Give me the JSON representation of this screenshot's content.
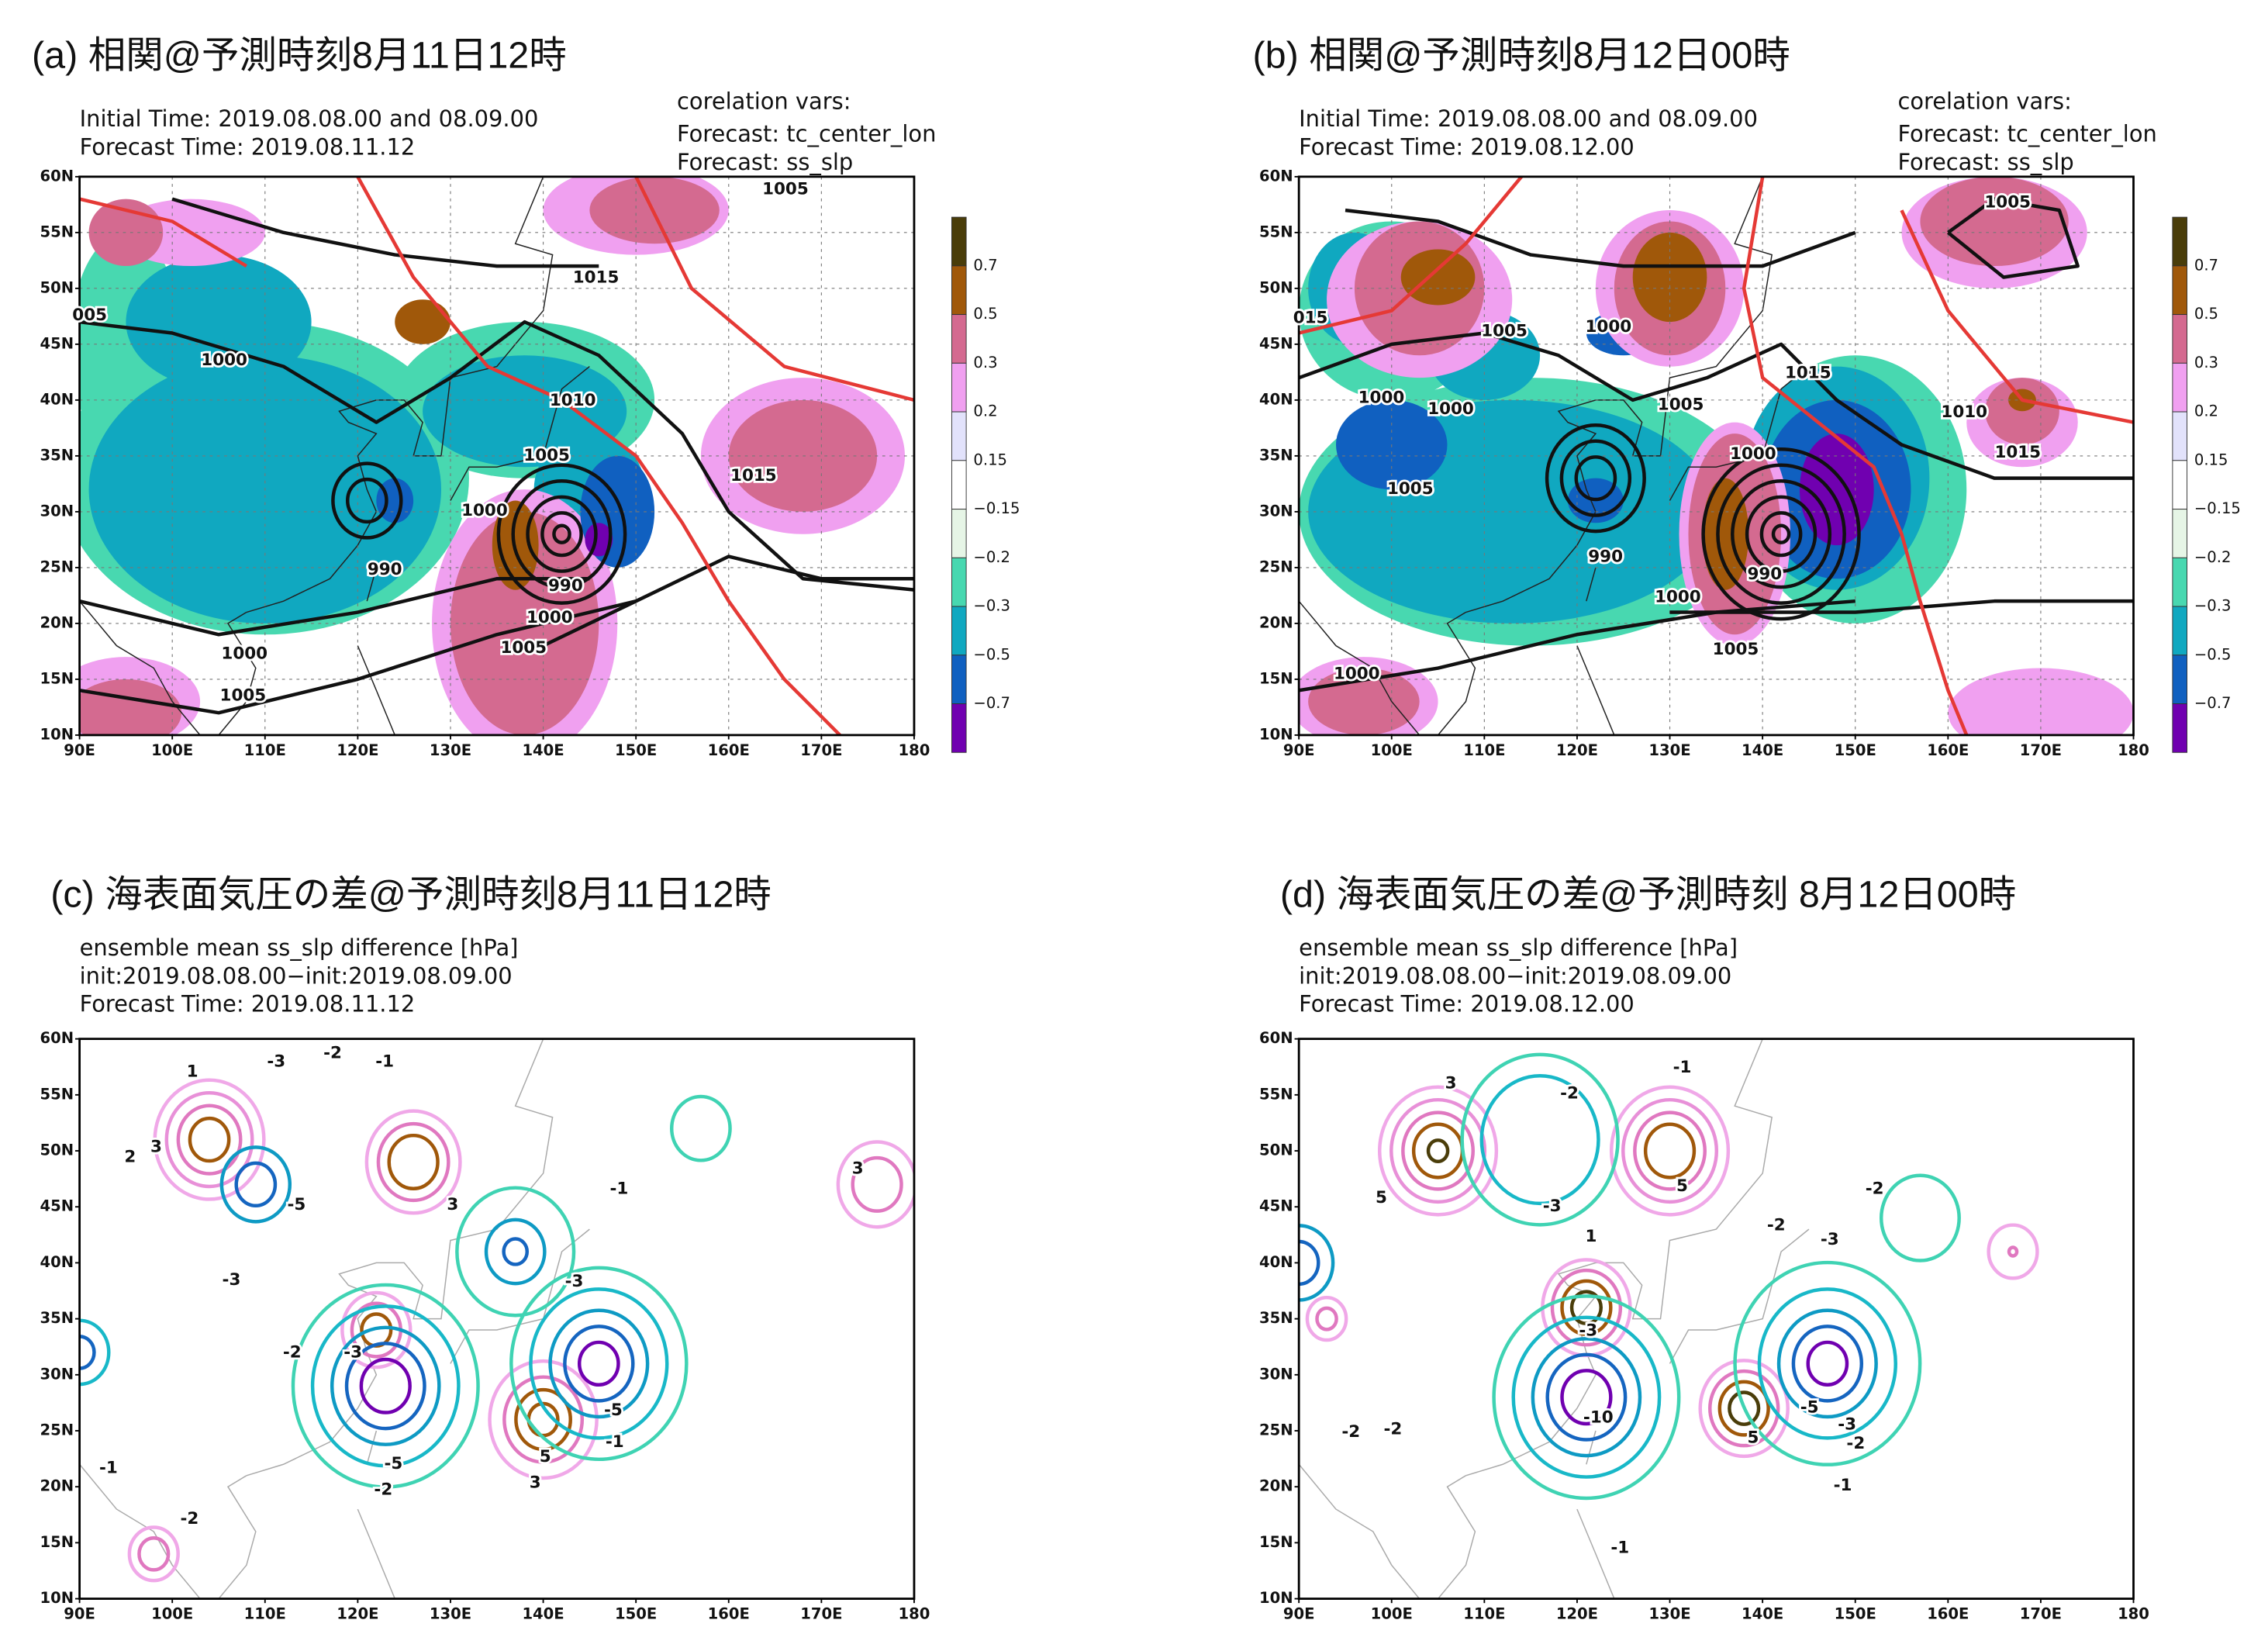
{
  "axes": {
    "lat_labels": [
      "60N",
      "55N",
      "50N",
      "45N",
      "40N",
      "35N",
      "30N",
      "25N",
      "20N",
      "15N",
      "10N"
    ],
    "lon_labels": [
      "90E",
      "100E",
      "110E",
      "120E",
      "130E",
      "140E",
      "150E",
      "160E",
      "170E",
      "180"
    ]
  },
  "colorbar": {
    "labels": [
      "0.7",
      "0.5",
      "0.3",
      "0.2",
      "0.15",
      "−0.15",
      "−0.2",
      "−0.3",
      "−0.5",
      "−0.7"
    ],
    "colors": [
      "#4a3d0a",
      "#a0580a",
      "#d46a90",
      "#f0a0f0",
      "#e2e2fb",
      "#ffffff",
      "#e6f5e6",
      "#48d8b0",
      "#10a8c0",
      "#1060c0",
      "#7000b0"
    ]
  },
  "label_colors": {
    "1010": "#e53935",
    "-1": "#3fd3b3",
    "-2": "#18b8c8",
    "-3": "#0e9ac4",
    "-5": "#1565c0",
    "-10": "#6a0dad",
    "1": "#f0a8e8",
    "2": "#e890d8",
    "3": "#e078c0",
    "5": "#9a5a10"
  },
  "panels": [
    {
      "title": "(a) 相関@予測時刻8月11日12時",
      "header_left": [
        "Initial Time: 2019.08.08.00 and 08.09.00",
        "Forecast Time: 2019.08.11.12"
      ],
      "header_right": [
        "corelation vars:",
        "Forecast: tc_center_lon",
        "Forecast: ss_slp"
      ],
      "colorbar": true,
      "contour_labels": [
        "005",
        "1000",
        "1015",
        "1010",
        "1005",
        "1000",
        "990",
        "990",
        "1000",
        "1005",
        "1000",
        "1005",
        "1005",
        "1015"
      ]
    },
    {
      "title": "(b) 相関@予測時刻8月12日00時",
      "header_left": [
        "Initial Time: 2019.08.08.00 and 08.09.00",
        "Forecast Time: 2019.08.12.00"
      ],
      "header_right": [
        "corelation vars:",
        "Forecast: tc_center_lon",
        "Forecast: ss_slp"
      ],
      "colorbar": true,
      "contour_labels": [
        "015",
        "1005",
        "1000",
        "1015",
        "1000",
        "1000",
        "1005",
        "1010",
        "1015",
        "1005",
        "1005",
        "1000",
        "990",
        "990",
        "1000",
        "1005",
        "1000"
      ]
    },
    {
      "title": "(c) 海表面気圧の差@予測時刻8月11日12時",
      "header_left": [
        "ensemble mean ss_slp difference [hPa]",
        "init:2019.08.08.00−init:2019.08.09.00",
        "Forecast Time: 2019.08.11.12"
      ],
      "header_right": [],
      "colorbar": false,
      "contour_labels": [
        "1",
        "-3",
        "-2",
        "-1",
        "3",
        "2",
        "-5",
        "3",
        "-1",
        "-3",
        "-3",
        "-2",
        "-3",
        "-5",
        "5",
        "-5",
        "3",
        "-2",
        "-1",
        "-2",
        "-1",
        "3"
      ]
    },
    {
      "title": "(d) 海表面気圧の差@予測時刻 8月12日00時",
      "header_left": [
        "ensemble mean ss_slp difference [hPa]",
        "init:2019.08.08.00−init:2019.08.09.00",
        "Forecast Time: 2019.08.12.00"
      ],
      "header_right": [],
      "colorbar": false,
      "contour_labels": [
        "3",
        "5",
        "-2",
        "-1",
        "-3",
        "5",
        "-2",
        "-3",
        "-2",
        "1",
        "-10",
        "5",
        "-5",
        "-3",
        "-2",
        "-1",
        "-1",
        "-2",
        "-2",
        "-3"
      ]
    }
  ]
}
